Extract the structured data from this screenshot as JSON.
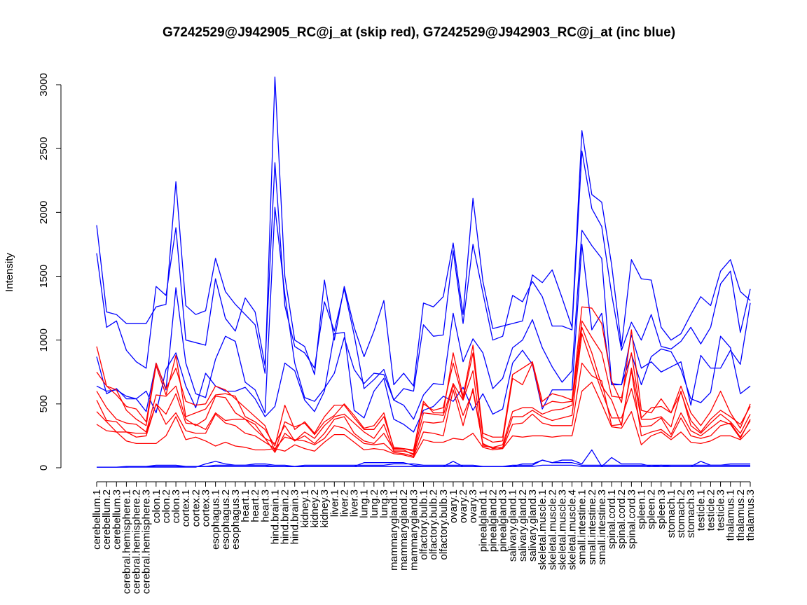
{
  "chart_data": {
    "type": "line",
    "title": "G7242529@J942905_RC@j_at (skip red), G7242529@J942903_RC@j_at (inc blue)",
    "ylabel": "Intensity",
    "xlabel": "",
    "ylim": [
      0,
      3000
    ],
    "yticks": [
      0,
      500,
      1000,
      1500,
      2000,
      2500,
      3000
    ],
    "grid": false,
    "colors": {
      "skip": "#ff0000",
      "inc": "#0000ff"
    },
    "categories": [
      "cerebellum.1",
      "cerebellum.2",
      "cerebellum.3",
      "cerebral.hemisphere.1",
      "cerebral.hemisphere.2",
      "cerebral.hemisphere.3",
      "colon.1",
      "colon.2",
      "colon.3",
      "cortex.1",
      "cortex.2",
      "cortex.3",
      "esophagus.1",
      "esophagus.2",
      "esophagus.3",
      "heart.1",
      "heart.2",
      "heart.3",
      "hind.brain.1",
      "hind.brain.2",
      "hind.brain.3",
      "kidney.1",
      "kidney.2",
      "kidney.3",
      "liver.1",
      "liver.2",
      "liver.3",
      "lung.1",
      "lung.2",
      "lung.3",
      "mammarygland.1",
      "mammarygland.2",
      "mammarygland.3",
      "olfactory.bulb.1",
      "olfactory.bulb.2",
      "olfactory.bulb.3",
      "ovary.1",
      "ovary.2",
      "ovary.3",
      "pinealgland.1",
      "pinealgland.2",
      "pinealgland.3",
      "salivary.gland.1",
      "salivary.gland.2",
      "salivary.gland.3",
      "skeletal.muscle.1",
      "skeletal.muscle.2",
      "skeletal.muscle.3",
      "skeletal.muscle.4",
      "small.intestine.1",
      "small.intestine.2",
      "small.intestine.3",
      "spinal.cord.1",
      "spinal.cord.2",
      "spinal.cord.3",
      "spleen.1",
      "spleen.2",
      "spleen.3",
      "stomach.1",
      "stomach.2",
      "stomach.3",
      "testicle.1",
      "testicle.2",
      "testicle.3",
      "thalamus.1",
      "thalamus.2",
      "thalamus.3"
    ],
    "series": [
      {
        "group": "inc",
        "values": [
          1900,
          1220,
          1200,
          1130,
          1130,
          1130,
          1260,
          1280,
          2240,
          1270,
          1200,
          1230,
          1640,
          1380,
          1280,
          1200,
          1120,
          740,
          3060,
          1500,
          1000,
          950,
          730,
          1470,
          1000,
          1420,
          1100,
          870,
          1070,
          1310,
          650,
          740,
          640,
          1290,
          1260,
          1340,
          1760,
          1200,
          2110,
          1460,
          1090,
          1110,
          1130,
          1150,
          1510,
          1450,
          1550,
          1330,
          1100,
          2640,
          2140,
          2080,
          1590,
          950,
          1630,
          1480,
          1470,
          1100,
          1000,
          1050,
          1200,
          1340,
          1270,
          1540,
          1630,
          1380,
          1310
        ]
      },
      {
        "group": "inc",
        "values": [
          1680,
          1100,
          1150,
          920,
          830,
          780,
          1420,
          1350,
          1880,
          1000,
          980,
          960,
          1480,
          1170,
          1070,
          1330,
          1220,
          800,
          2390,
          1270,
          950,
          900,
          780,
          1300,
          1070,
          1400,
          1040,
          620,
          690,
          770,
          530,
          620,
          600,
          1120,
          1030,
          1040,
          1700,
          1130,
          1750,
          1370,
          1000,
          1030,
          1350,
          1300,
          1460,
          1340,
          1110,
          1110,
          1080,
          2480,
          2030,
          1890,
          1360,
          920,
          1140,
          1000,
          1200,
          950,
          930,
          990,
          1100,
          970,
          1100,
          1440,
          1540,
          1060,
          1400
        ]
      },
      {
        "group": "inc",
        "values": [
          870,
          580,
          620,
          540,
          540,
          440,
          820,
          610,
          1410,
          820,
          580,
          550,
          850,
          1030,
          990,
          670,
          610,
          430,
          2040,
          1360,
          820,
          550,
          520,
          620,
          740,
          1020,
          770,
          660,
          740,
          730,
          530,
          490,
          380,
          570,
          660,
          650,
          1210,
          830,
          1010,
          900,
          620,
          700,
          940,
          1000,
          1160,
          940,
          790,
          670,
          760,
          1860,
          1740,
          1640,
          660,
          650,
          1040,
          780,
          830,
          750,
          790,
          830,
          490,
          880,
          780,
          780,
          920,
          810,
          1290
        ]
      },
      {
        "group": "inc",
        "values": [
          640,
          600,
          610,
          560,
          540,
          600,
          430,
          770,
          900,
          640,
          470,
          740,
          640,
          600,
          600,
          630,
          540,
          400,
          480,
          820,
          760,
          530,
          440,
          600,
          1050,
          1060,
          450,
          390,
          600,
          700,
          380,
          340,
          280,
          450,
          480,
          560,
          520,
          630,
          450,
          580,
          420,
          460,
          820,
          920,
          810,
          460,
          610,
          610,
          610,
          1750,
          1080,
          1210,
          650,
          650,
          890,
          650,
          870,
          930,
          910,
          770,
          540,
          510,
          590,
          1030,
          940,
          580,
          640
        ]
      },
      {
        "group": "inc",
        "values": [
          5,
          5,
          5,
          5,
          5,
          5,
          5,
          5,
          5,
          5,
          5,
          30,
          50,
          30,
          20,
          20,
          30,
          30,
          20,
          20,
          10,
          10,
          10,
          10,
          10,
          10,
          10,
          40,
          40,
          40,
          40,
          40,
          20,
          10,
          10,
          10,
          50,
          10,
          10,
          10,
          10,
          10,
          10,
          30,
          30,
          60,
          40,
          60,
          60,
          30,
          140,
          10,
          80,
          30,
          30,
          30,
          10,
          20,
          10,
          10,
          10,
          50,
          20,
          20,
          30,
          30,
          30
        ]
      },
      {
        "group": "inc",
        "values": [
          5,
          5,
          5,
          5,
          10,
          10,
          20,
          20,
          20,
          10,
          10,
          10,
          20,
          20,
          20,
          20,
          20,
          20,
          10,
          10,
          10,
          20,
          20,
          20,
          20,
          20,
          20,
          20,
          20,
          20,
          30,
          30,
          30,
          20,
          20,
          20,
          20,
          20,
          20,
          10,
          10,
          10,
          20,
          20,
          20,
          60,
          40,
          40,
          40,
          20,
          20,
          20,
          20,
          20,
          20,
          20,
          20,
          20,
          20,
          20,
          20,
          20,
          20,
          20,
          20,
          20,
          20
        ]
      },
      {
        "group": "inc",
        "values": [
          5,
          5,
          5,
          10,
          10,
          10,
          10,
          10,
          10,
          10,
          10,
          10,
          10,
          10,
          10,
          10,
          10,
          10,
          10,
          10,
          10,
          10,
          10,
          10,
          10,
          10,
          10,
          10,
          10,
          10,
          10,
          10,
          10,
          10,
          10,
          10,
          10,
          10,
          10,
          10,
          10,
          10,
          10,
          10,
          10,
          20,
          20,
          20,
          20,
          10,
          10,
          10,
          10,
          10,
          10,
          10,
          10,
          10,
          10,
          10,
          10,
          10,
          10,
          10,
          10,
          10,
          10
        ]
      },
      {
        "group": "skip",
        "values": [
          950,
          640,
          570,
          480,
          460,
          360,
          820,
          620,
          780,
          520,
          490,
          500,
          640,
          610,
          540,
          470,
          400,
          330,
          130,
          360,
          320,
          350,
          260,
          360,
          410,
          500,
          410,
          310,
          330,
          430,
          150,
          150,
          140,
          520,
          430,
          430,
          900,
          560,
          960,
          270,
          240,
          240,
          730,
          780,
          830,
          520,
          580,
          560,
          530,
          1260,
          1250,
          1130,
          680,
          510,
          1080,
          450,
          430,
          540,
          430,
          640,
          430,
          330,
          440,
          600,
          430,
          310,
          500
        ]
      },
      {
        "group": "skip",
        "values": [
          750,
          640,
          610,
          450,
          380,
          330,
          800,
          570,
          880,
          400,
          430,
          460,
          570,
          580,
          560,
          400,
          360,
          300,
          170,
          490,
          300,
          360,
          270,
          400,
          490,
          490,
          390,
          300,
          300,
          400,
          160,
          150,
          130,
          500,
          450,
          470,
          820,
          540,
          900,
          240,
          200,
          210,
          700,
          650,
          820,
          480,
          520,
          510,
          520,
          1150,
          1020,
          900,
          560,
          550,
          900,
          390,
          470,
          480,
          430,
          590,
          370,
          280,
          380,
          450,
          400,
          340,
          480
        ]
      },
      {
        "group": "skip",
        "values": [
          600,
          470,
          380,
          350,
          340,
          280,
          570,
          560,
          640,
          380,
          330,
          380,
          560,
          550,
          430,
          380,
          340,
          230,
          120,
          270,
          210,
          280,
          230,
          330,
          400,
          420,
          350,
          280,
          230,
          340,
          130,
          130,
          110,
          430,
          420,
          410,
          660,
          530,
          760,
          170,
          160,
          180,
          440,
          470,
          470,
          420,
          450,
          460,
          490,
          1100,
          900,
          640,
          530,
          330,
          780,
          380,
          380,
          400,
          320,
          600,
          330,
          270,
          350,
          420,
          360,
          270,
          420
        ]
      },
      {
        "group": "skip",
        "values": [
          530,
          370,
          360,
          280,
          270,
          270,
          500,
          420,
          580,
          350,
          340,
          300,
          430,
          370,
          380,
          380,
          300,
          230,
          190,
          330,
          210,
          250,
          190,
          270,
          380,
          400,
          270,
          210,
          190,
          270,
          140,
          140,
          100,
          360,
          350,
          360,
          650,
          410,
          600,
          190,
          150,
          160,
          400,
          400,
          450,
          400,
          370,
          390,
          410,
          1050,
          820,
          600,
          390,
          390,
          620,
          320,
          330,
          390,
          260,
          430,
          290,
          250,
          310,
          370,
          340,
          230,
          380
        ]
      },
      {
        "group": "skip",
        "values": [
          440,
          360,
          280,
          280,
          240,
          250,
          500,
          340,
          430,
          290,
          270,
          270,
          420,
          350,
          330,
          270,
          250,
          200,
          150,
          240,
          220,
          210,
          180,
          230,
          330,
          310,
          250,
          190,
          180,
          190,
          120,
          110,
          90,
          280,
          270,
          250,
          610,
          330,
          620,
          180,
          160,
          150,
          340,
          350,
          420,
          350,
          330,
          330,
          330,
          820,
          720,
          680,
          330,
          340,
          760,
          250,
          280,
          300,
          240,
          390,
          250,
          230,
          250,
          330,
          350,
          240,
          370
        ]
      },
      {
        "group": "skip",
        "values": [
          340,
          290,
          280,
          210,
          190,
          190,
          190,
          250,
          400,
          220,
          240,
          210,
          170,
          200,
          170,
          160,
          140,
          140,
          150,
          130,
          180,
          150,
          130,
          200,
          260,
          260,
          200,
          140,
          150,
          140,
          110,
          100,
          80,
          220,
          200,
          200,
          230,
          220,
          270,
          160,
          140,
          150,
          250,
          240,
          250,
          250,
          240,
          250,
          250,
          600,
          670,
          500,
          320,
          310,
          440,
          180,
          250,
          280,
          220,
          280,
          200,
          190,
          210,
          250,
          250,
          220,
          300
        ]
      }
    ]
  }
}
